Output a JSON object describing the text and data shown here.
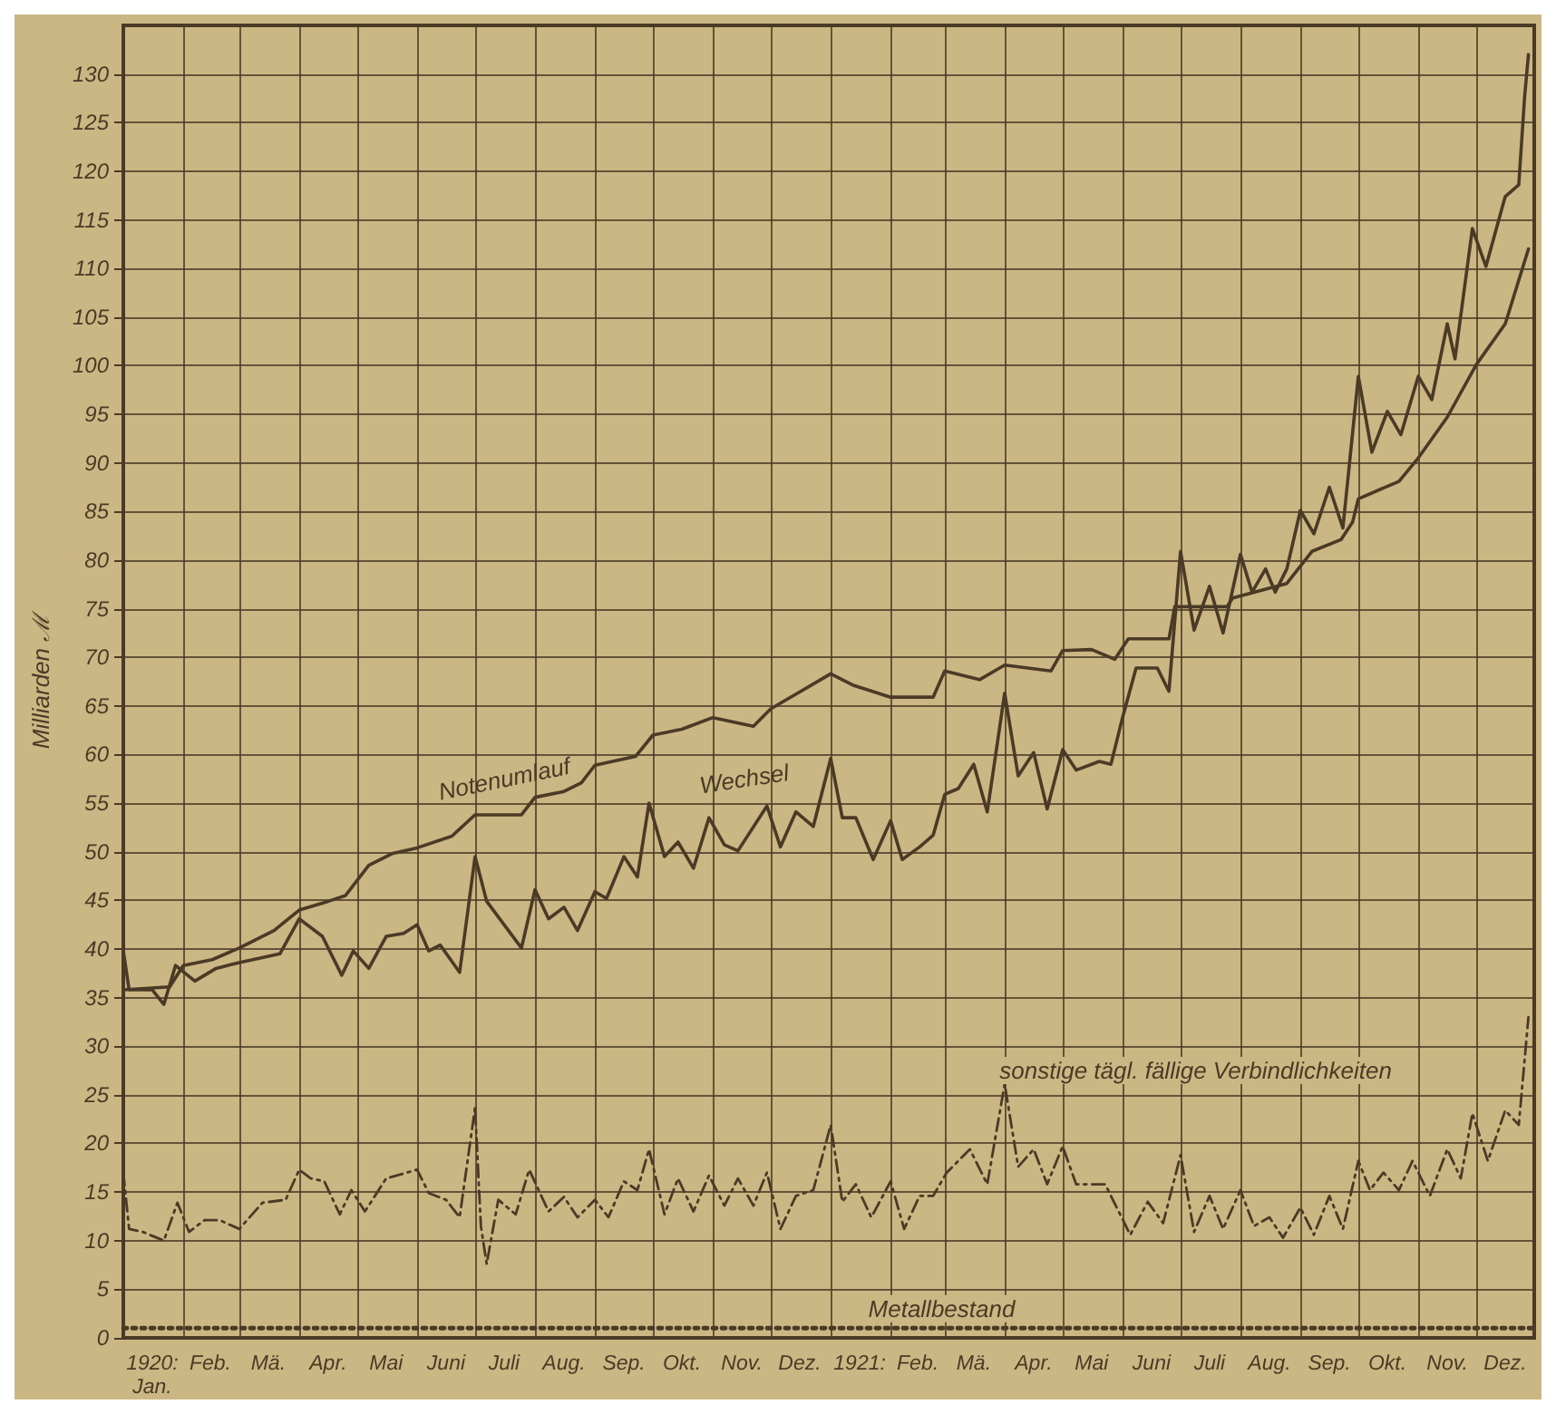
{
  "chart_data": {
    "type": "line",
    "ylabel": "Milliarden ℳ",
    "xlim": [
      "1920-01-01",
      "1921-12-31"
    ],
    "ylim": [
      0,
      135
    ],
    "xticks": [
      {
        "value": "1920-01-16",
        "label": "1920: Jan."
      },
      {
        "value": "1920-02-01",
        "label": null
      },
      {
        "value": "1920-02-15",
        "label": "Feb."
      },
      {
        "value": "1920-03-01",
        "label": null
      },
      {
        "value": "1920-03-16",
        "label": "Mä."
      },
      {
        "value": "1920-04-01",
        "label": null
      },
      {
        "value": "1920-04-16",
        "label": "Apr."
      },
      {
        "value": "1920-05-01",
        "label": null
      },
      {
        "value": "1920-05-16",
        "label": "Mai"
      },
      {
        "value": "1920-06-01",
        "label": null
      },
      {
        "value": "1920-06-16",
        "label": "Juni"
      },
      {
        "value": "1920-07-01",
        "label": null
      },
      {
        "value": "1920-07-16",
        "label": "Juli"
      },
      {
        "value": "1920-08-01",
        "label": null
      },
      {
        "value": "1920-08-16",
        "label": "Aug."
      },
      {
        "value": "1920-09-01",
        "label": null
      },
      {
        "value": "1920-09-16",
        "label": "Sep."
      },
      {
        "value": "1920-10-01",
        "label": null
      },
      {
        "value": "1920-10-16",
        "label": "Okt."
      },
      {
        "value": "1920-11-01",
        "label": null
      },
      {
        "value": "1920-11-16",
        "label": "Nov."
      },
      {
        "value": "1920-12-01",
        "label": null
      },
      {
        "value": "1920-12-16",
        "label": "Dez."
      },
      {
        "value": "1921-01-01",
        "label": null
      },
      {
        "value": "1921-01-16",
        "label": "1921:"
      },
      {
        "value": "1921-02-01",
        "label": null
      },
      {
        "value": "1921-02-15",
        "label": "Feb."
      },
      {
        "value": "1921-03-01",
        "label": null
      },
      {
        "value": "1921-03-16",
        "label": "Mä."
      },
      {
        "value": "1921-04-01",
        "label": null
      },
      {
        "value": "1921-04-16",
        "label": "Apr."
      },
      {
        "value": "1921-05-01",
        "label": null
      },
      {
        "value": "1921-05-16",
        "label": "Mai"
      },
      {
        "value": "1921-06-01",
        "label": null
      },
      {
        "value": "1921-06-16",
        "label": "Juni"
      },
      {
        "value": "1921-07-01",
        "label": null
      },
      {
        "value": "1921-07-16",
        "label": "Juli"
      },
      {
        "value": "1921-08-01",
        "label": null
      },
      {
        "value": "1921-08-16",
        "label": "Aug."
      },
      {
        "value": "1921-09-01",
        "label": null
      },
      {
        "value": "1921-09-16",
        "label": "Sep."
      },
      {
        "value": "1921-10-01",
        "label": null
      },
      {
        "value": "1921-10-16",
        "label": "Okt."
      },
      {
        "value": "1921-11-01",
        "label": null
      },
      {
        "value": "1921-11-16",
        "label": "Nov."
      },
      {
        "value": "1921-12-01",
        "label": null
      },
      {
        "value": "1921-12-16",
        "label": "Dez."
      }
    ],
    "yticks": [
      0,
      5,
      10,
      15,
      20,
      25,
      30,
      35,
      40,
      45,
      50,
      55,
      60,
      65,
      70,
      75,
      80,
      85,
      90,
      95,
      100,
      105,
      110,
      115,
      120,
      125,
      130
    ],
    "grid": true,
    "legend": false,
    "marker": "none",
    "series": [
      {
        "name": "Notenumlauf",
        "color": "#4a3a26",
        "line_style": "solid",
        "x": [
          "1920-01-01",
          "1920-01-25",
          "1920-02-01",
          "1920-02-16",
          "1920-03-01",
          "1920-03-19",
          "1920-04-01",
          "1920-04-16",
          "1920-04-25",
          "1920-05-07",
          "1920-05-19",
          "1920-06-01",
          "1920-06-19",
          "1920-07-01",
          "1920-07-25",
          "1920-08-01",
          "1920-08-16",
          "1920-08-25",
          "1920-09-01",
          "1920-09-22",
          "1920-10-01",
          "1920-10-16",
          "1920-11-01",
          "1920-11-22",
          "1920-12-01",
          "1921-01-01",
          "1921-01-13",
          "1921-02-01",
          "1921-02-23",
          "1921-03-01",
          "1921-03-19",
          "1921-04-01",
          "1921-04-25",
          "1921-05-01",
          "1921-05-16",
          "1921-05-28",
          "1921-06-04",
          "1921-06-25",
          "1921-06-28",
          "1921-07-25",
          "1921-07-28",
          "1921-08-25",
          "1921-09-07",
          "1921-09-22",
          "1921-09-28",
          "1921-10-01",
          "1921-10-22",
          "1921-11-01",
          "1921-11-16",
          "1921-12-01",
          "1921-12-16",
          "1921-12-28"
        ],
        "values": [
          35.8,
          36.1,
          38.3,
          38.9,
          40.1,
          41.9,
          44.0,
          44.9,
          45.5,
          48.6,
          49.8,
          50.4,
          51.6,
          53.8,
          53.8,
          55.6,
          56.2,
          57.1,
          58.9,
          59.8,
          62.0,
          62.6,
          63.8,
          62.9,
          64.7,
          68.3,
          67.1,
          65.9,
          65.9,
          68.6,
          67.7,
          69.2,
          68.6,
          70.7,
          70.8,
          69.8,
          71.9,
          71.9,
          75.2,
          75.2,
          76.1,
          77.6,
          80.9,
          82.1,
          83.9,
          86.3,
          88.1,
          90.5,
          94.7,
          100.1,
          104.3,
          112.0
        ]
      },
      {
        "name": "Wechsel",
        "color": "#4a3a26",
        "line_style": "solid",
        "x": [
          "1920-01-01",
          "1920-01-04",
          "1920-01-16",
          "1920-01-22",
          "1920-01-28",
          "1920-02-07",
          "1920-02-18",
          "1920-03-01",
          "1920-03-22",
          "1920-04-01",
          "1920-04-13",
          "1920-04-23",
          "1920-04-29",
          "1920-05-07",
          "1920-05-16",
          "1920-05-25",
          "1920-06-01",
          "1920-06-07",
          "1920-06-13",
          "1920-06-23",
          "1920-07-01",
          "1920-07-07",
          "1920-07-25",
          "1920-08-01",
          "1920-08-08",
          "1920-08-16",
          "1920-08-23",
          "1920-09-01",
          "1920-09-07",
          "1920-09-16",
          "1920-09-23",
          "1920-09-29",
          "1920-10-07",
          "1920-10-14",
          "1920-10-22",
          "1920-10-30",
          "1920-11-07",
          "1920-11-14",
          "1920-11-29",
          "1920-12-06",
          "1920-12-14",
          "1920-12-23",
          "1921-01-01",
          "1921-01-07",
          "1921-01-14",
          "1921-01-23",
          "1921-02-01",
          "1921-02-07",
          "1921-02-16",
          "1921-02-23",
          "1921-03-01",
          "1921-03-08",
          "1921-03-16",
          "1921-03-23",
          "1921-04-01",
          "1921-04-08",
          "1921-04-16",
          "1921-04-23",
          "1921-05-01",
          "1921-05-08",
          "1921-05-20",
          "1921-05-26",
          "1921-06-01",
          "1921-06-08",
          "1921-06-19",
          "1921-06-25",
          "1921-07-01",
          "1921-07-08",
          "1921-07-16",
          "1921-07-23",
          "1921-08-01",
          "1921-08-07",
          "1921-08-14",
          "1921-08-19",
          "1921-08-25",
          "1921-09-01",
          "1921-09-08",
          "1921-09-16",
          "1921-09-23",
          "1921-10-01",
          "1921-10-08",
          "1921-10-16",
          "1921-10-23",
          "1921-11-01",
          "1921-11-08",
          "1921-11-16",
          "1921-11-20",
          "1921-11-29",
          "1921-12-06",
          "1921-12-16",
          "1921-12-23",
          "1921-12-26",
          "1921-12-28"
        ],
        "values": [
          39.8,
          35.8,
          35.8,
          34.3,
          38.3,
          36.7,
          38.0,
          38.6,
          39.5,
          43.1,
          41.3,
          37.3,
          39.8,
          38.0,
          41.3,
          41.6,
          42.5,
          39.8,
          40.4,
          37.6,
          49.5,
          44.9,
          40.1,
          46.1,
          43.1,
          44.3,
          41.9,
          45.9,
          45.2,
          49.5,
          47.4,
          55.0,
          49.5,
          51.0,
          48.3,
          53.5,
          50.7,
          50.1,
          54.7,
          50.5,
          54.1,
          52.6,
          59.6,
          53.5,
          53.5,
          49.2,
          53.2,
          49.2,
          50.5,
          51.7,
          55.9,
          56.5,
          59.0,
          54.1,
          66.3,
          57.8,
          60.2,
          54.4,
          60.5,
          58.4,
          59.3,
          59.0,
          63.8,
          68.9,
          68.9,
          66.5,
          80.9,
          72.8,
          77.3,
          72.5,
          80.6,
          76.7,
          79.1,
          76.7,
          79.1,
          85.1,
          82.7,
          87.5,
          83.3,
          98.9,
          91.1,
          95.3,
          92.9,
          98.9,
          96.5,
          104.3,
          100.7,
          114.1,
          110.2,
          117.4,
          118.6,
          127.6,
          132.0
        ]
      },
      {
        "name": "sonstige tägl. fällige Verbindlichkeiten",
        "color": "#4a3a26",
        "line_style": "dashed",
        "x": [
          "1920-01-01",
          "1920-01-04",
          "1920-01-11",
          "1920-01-22",
          "1920-01-29",
          "1920-02-04",
          "1920-02-12",
          "1920-02-20",
          "1920-03-01",
          "1920-03-13",
          "1920-03-25",
          "1920-04-01",
          "1920-04-07",
          "1920-04-14",
          "1920-04-22",
          "1920-04-28",
          "1920-05-05",
          "1920-05-16",
          "1920-06-01",
          "1920-06-07",
          "1920-06-16",
          "1920-06-23",
          "1920-07-01",
          "1920-07-04",
          "1920-07-07",
          "1920-07-13",
          "1920-07-22",
          "1920-07-29",
          "1920-08-08",
          "1920-08-16",
          "1920-08-23",
          "1920-09-01",
          "1920-09-08",
          "1920-09-16",
          "1920-09-23",
          "1920-09-29",
          "1920-10-07",
          "1920-10-14",
          "1920-10-22",
          "1920-10-30",
          "1920-11-07",
          "1920-11-14",
          "1920-11-22",
          "1920-11-29",
          "1920-12-06",
          "1920-12-14",
          "1920-12-23",
          "1921-01-01",
          "1921-01-07",
          "1921-01-14",
          "1921-01-22",
          "1921-02-01",
          "1921-02-08",
          "1921-02-16",
          "1921-02-23",
          "1921-03-02",
          "1921-03-14",
          "1921-03-23",
          "1921-04-01",
          "1921-04-08",
          "1921-04-16",
          "1921-04-23",
          "1921-05-01",
          "1921-05-08",
          "1921-05-23",
          "1921-06-05",
          "1921-06-14",
          "1921-06-22",
          "1921-07-01",
          "1921-07-08",
          "1921-07-16",
          "1921-07-23",
          "1921-08-01",
          "1921-08-08",
          "1921-08-16",
          "1921-08-23",
          "1921-09-01",
          "1921-09-08",
          "1921-09-16",
          "1921-09-23",
          "1921-10-01",
          "1921-10-07",
          "1921-10-14",
          "1921-10-22",
          "1921-10-29",
          "1921-11-07",
          "1921-11-16",
          "1921-11-23",
          "1921-11-29",
          "1921-12-07",
          "1921-12-16",
          "1921-12-23",
          "1921-12-28"
        ],
        "values": [
          17.0,
          11.2,
          10.9,
          10.0,
          13.9,
          10.9,
          12.1,
          12.1,
          11.2,
          13.9,
          14.2,
          17.3,
          16.4,
          16.1,
          12.7,
          15.2,
          13.0,
          16.4,
          17.3,
          14.9,
          14.2,
          12.4,
          23.7,
          11.5,
          7.6,
          14.2,
          12.7,
          17.3,
          13.0,
          14.5,
          12.4,
          14.2,
          12.4,
          16.1,
          15.2,
          19.4,
          12.7,
          16.4,
          13.0,
          16.7,
          13.6,
          16.4,
          13.6,
          17.0,
          11.2,
          14.6,
          15.2,
          21.9,
          14.0,
          15.8,
          12.4,
          16.1,
          11.2,
          14.6,
          14.6,
          17.0,
          19.4,
          15.8,
          26.1,
          17.6,
          19.4,
          15.8,
          19.7,
          15.8,
          15.8,
          10.6,
          14.0,
          11.8,
          18.8,
          10.9,
          14.6,
          11.2,
          15.2,
          11.5,
          12.4,
          10.3,
          13.4,
          10.6,
          14.6,
          11.2,
          18.2,
          15.2,
          17.0,
          15.2,
          18.2,
          14.6,
          19.4,
          16.4,
          23.1,
          18.2,
          23.4,
          21.9,
          33.0
        ]
      },
      {
        "name": "Metallbestand",
        "color": "#4a3a26",
        "line_style": "dotted",
        "x": [
          "1920-01-01",
          "1920-07-01",
          "1921-01-01",
          "1921-07-01",
          "1921-12-31"
        ],
        "values": [
          1,
          1,
          1,
          1,
          1
        ]
      }
    ]
  }
}
